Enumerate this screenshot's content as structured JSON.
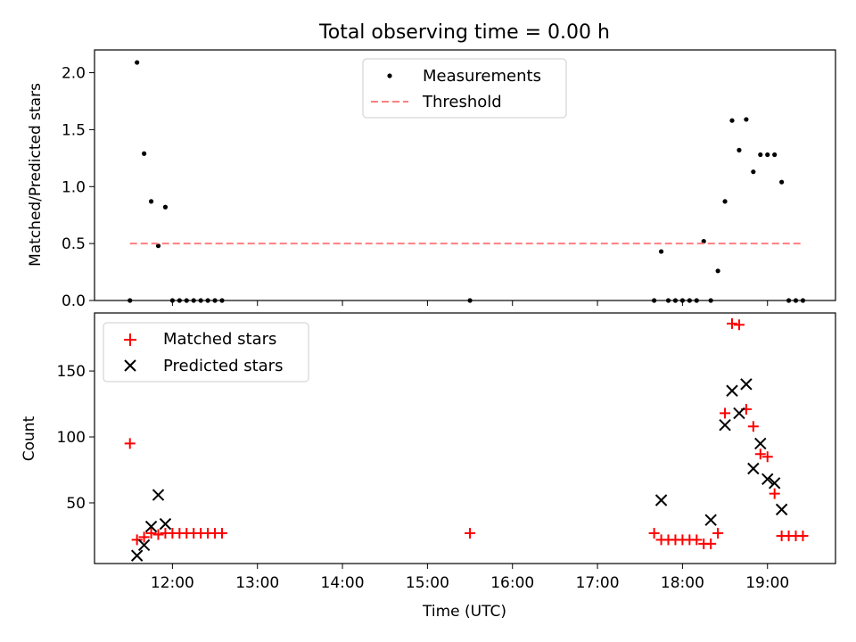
{
  "figure": {
    "title": "Total observing time = 0.00 h"
  },
  "chart_data": [
    {
      "type": "scatter",
      "ylabel": "Matched/Predicted stars",
      "xlim": [
        "11:05",
        "19:48"
      ],
      "ylim": [
        0,
        2.2
      ],
      "yticks": [
        "0.0",
        "0.5",
        "1.0",
        "1.5",
        "2.0"
      ],
      "legend_placement": "upper center",
      "series": [
        {
          "name": "Measurements",
          "color": "#000000",
          "marker": "dot",
          "x": [
            "11:30",
            "11:35",
            "11:40",
            "11:45",
            "11:50",
            "11:55",
            "12:00",
            "12:05",
            "12:10",
            "12:15",
            "12:20",
            "12:25",
            "12:30",
            "12:35",
            "15:30",
            "17:40",
            "17:45",
            "17:50",
            "17:55",
            "18:00",
            "18:05",
            "18:10",
            "18:15",
            "18:20",
            "18:25",
            "18:30",
            "18:35",
            "18:40",
            "18:45",
            "18:50",
            "18:55",
            "19:00",
            "19:05",
            "19:10",
            "19:15",
            "19:20",
            "19:25"
          ],
          "y": [
            0.0,
            2.09,
            1.29,
            0.87,
            0.48,
            0.82,
            0.0,
            0.0,
            0.0,
            0.0,
            0.0,
            0.0,
            0.0,
            0.0,
            0.0,
            0.0,
            0.43,
            0.0,
            0.0,
            0.0,
            0.0,
            0.0,
            0.52,
            0.0,
            0.26,
            0.87,
            1.58,
            1.32,
            1.59,
            1.13,
            1.28,
            1.28,
            1.28,
            1.04,
            0.0,
            0.0,
            0.0
          ]
        },
        {
          "name": "Threshold",
          "color": "#ff7f7f",
          "style": "dashed",
          "x": [
            "11:30",
            "19:25"
          ],
          "y": [
            0.5,
            0.5
          ]
        }
      ]
    },
    {
      "type": "scatter",
      "xlabel": "Time (UTC)",
      "ylabel": "Count",
      "xlim": [
        "11:05",
        "19:48"
      ],
      "ylim": [
        4,
        194
      ],
      "xticks": [
        "12:00",
        "13:00",
        "14:00",
        "15:00",
        "16:00",
        "17:00",
        "18:00",
        "19:00"
      ],
      "yticks": [
        "50",
        "100",
        "150"
      ],
      "legend_placement": "upper left",
      "series": [
        {
          "name": "Matched stars",
          "color": "#ff0000",
          "marker": "plus",
          "x": [
            "11:30",
            "11:35",
            "11:40",
            "11:45",
            "11:50",
            "11:55",
            "12:00",
            "12:05",
            "12:10",
            "12:15",
            "12:20",
            "12:25",
            "12:30",
            "12:35",
            "15:30",
            "17:40",
            "17:45",
            "17:50",
            "17:55",
            "18:00",
            "18:05",
            "18:10",
            "18:15",
            "18:20",
            "18:25",
            "18:30",
            "18:35",
            "18:40",
            "18:45",
            "18:50",
            "18:55",
            "19:00",
            "19:05",
            "19:10",
            "19:15",
            "19:20",
            "19:25"
          ],
          "y": [
            95,
            22,
            24,
            27,
            26,
            27,
            27,
            27,
            27,
            27,
            27,
            27,
            27,
            27,
            27,
            27,
            22,
            22,
            22,
            22,
            22,
            22,
            19,
            19,
            27,
            118,
            186,
            185,
            121,
            108,
            87,
            85,
            57,
            25,
            25,
            25,
            25
          ]
        },
        {
          "name": "Predicted stars",
          "color": "#000000",
          "marker": "x",
          "x": [
            "11:35",
            "11:40",
            "11:45",
            "11:50",
            "11:55",
            "17:45",
            "18:20",
            "18:30",
            "18:35",
            "18:40",
            "18:45",
            "18:50",
            "18:55",
            "19:00",
            "19:05",
            "19:10"
          ],
          "y": [
            10,
            18,
            32,
            56,
            34,
            52,
            37,
            109,
            135,
            118,
            140,
            76,
            95,
            68,
            65,
            45
          ]
        }
      ]
    }
  ]
}
